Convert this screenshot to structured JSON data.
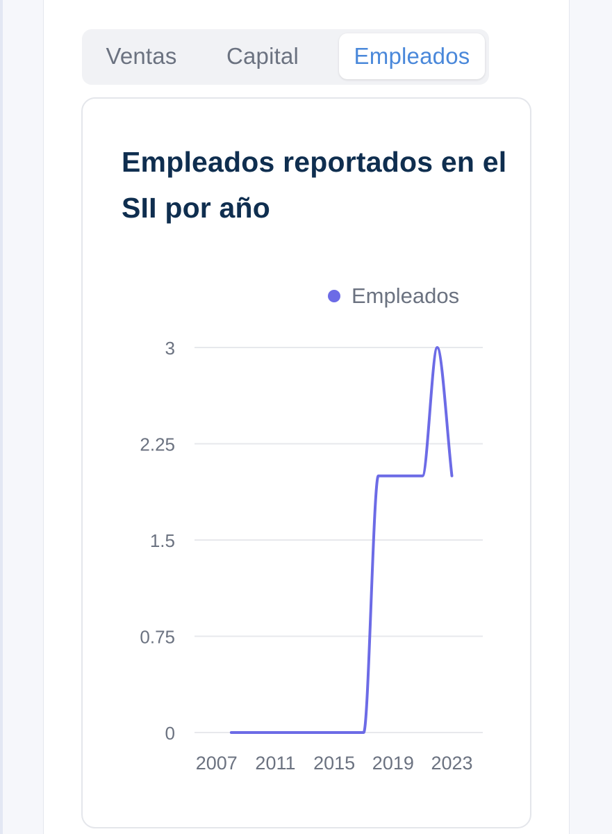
{
  "tabs": [
    {
      "label": "Ventas",
      "active": false
    },
    {
      "label": "Capital",
      "active": false
    },
    {
      "label": "Empleados",
      "active": true
    }
  ],
  "card": {
    "title": "Empleados reportados en el SII por año"
  },
  "colors": {
    "series": "#6c6be6",
    "active_tab": "#4a88da",
    "title": "#0f2e4f",
    "grid": "#e7e8ec",
    "tick": "#6b7280"
  },
  "chart_data": {
    "type": "line",
    "title": "Empleados reportados en el SII por año",
    "xlabel": "",
    "ylabel": "",
    "x": [
      2008,
      2009,
      2010,
      2011,
      2012,
      2013,
      2014,
      2015,
      2016,
      2017,
      2018,
      2019,
      2020,
      2021,
      2022,
      2023
    ],
    "series": [
      {
        "name": "Empleados",
        "values": [
          0,
          0,
          0,
          0,
          0,
          0,
          0,
          0,
          0,
          0,
          2,
          2,
          2,
          2,
          3,
          2
        ]
      }
    ],
    "x_ticks": [
      "2007",
      "2011",
      "2015",
      "2019",
      "2023"
    ],
    "y_ticks": [
      "0",
      "0.75",
      "1.5",
      "2.25",
      "3"
    ],
    "ylim": [
      0,
      3
    ],
    "grid": true,
    "legend": "top-right",
    "smooth": true
  }
}
